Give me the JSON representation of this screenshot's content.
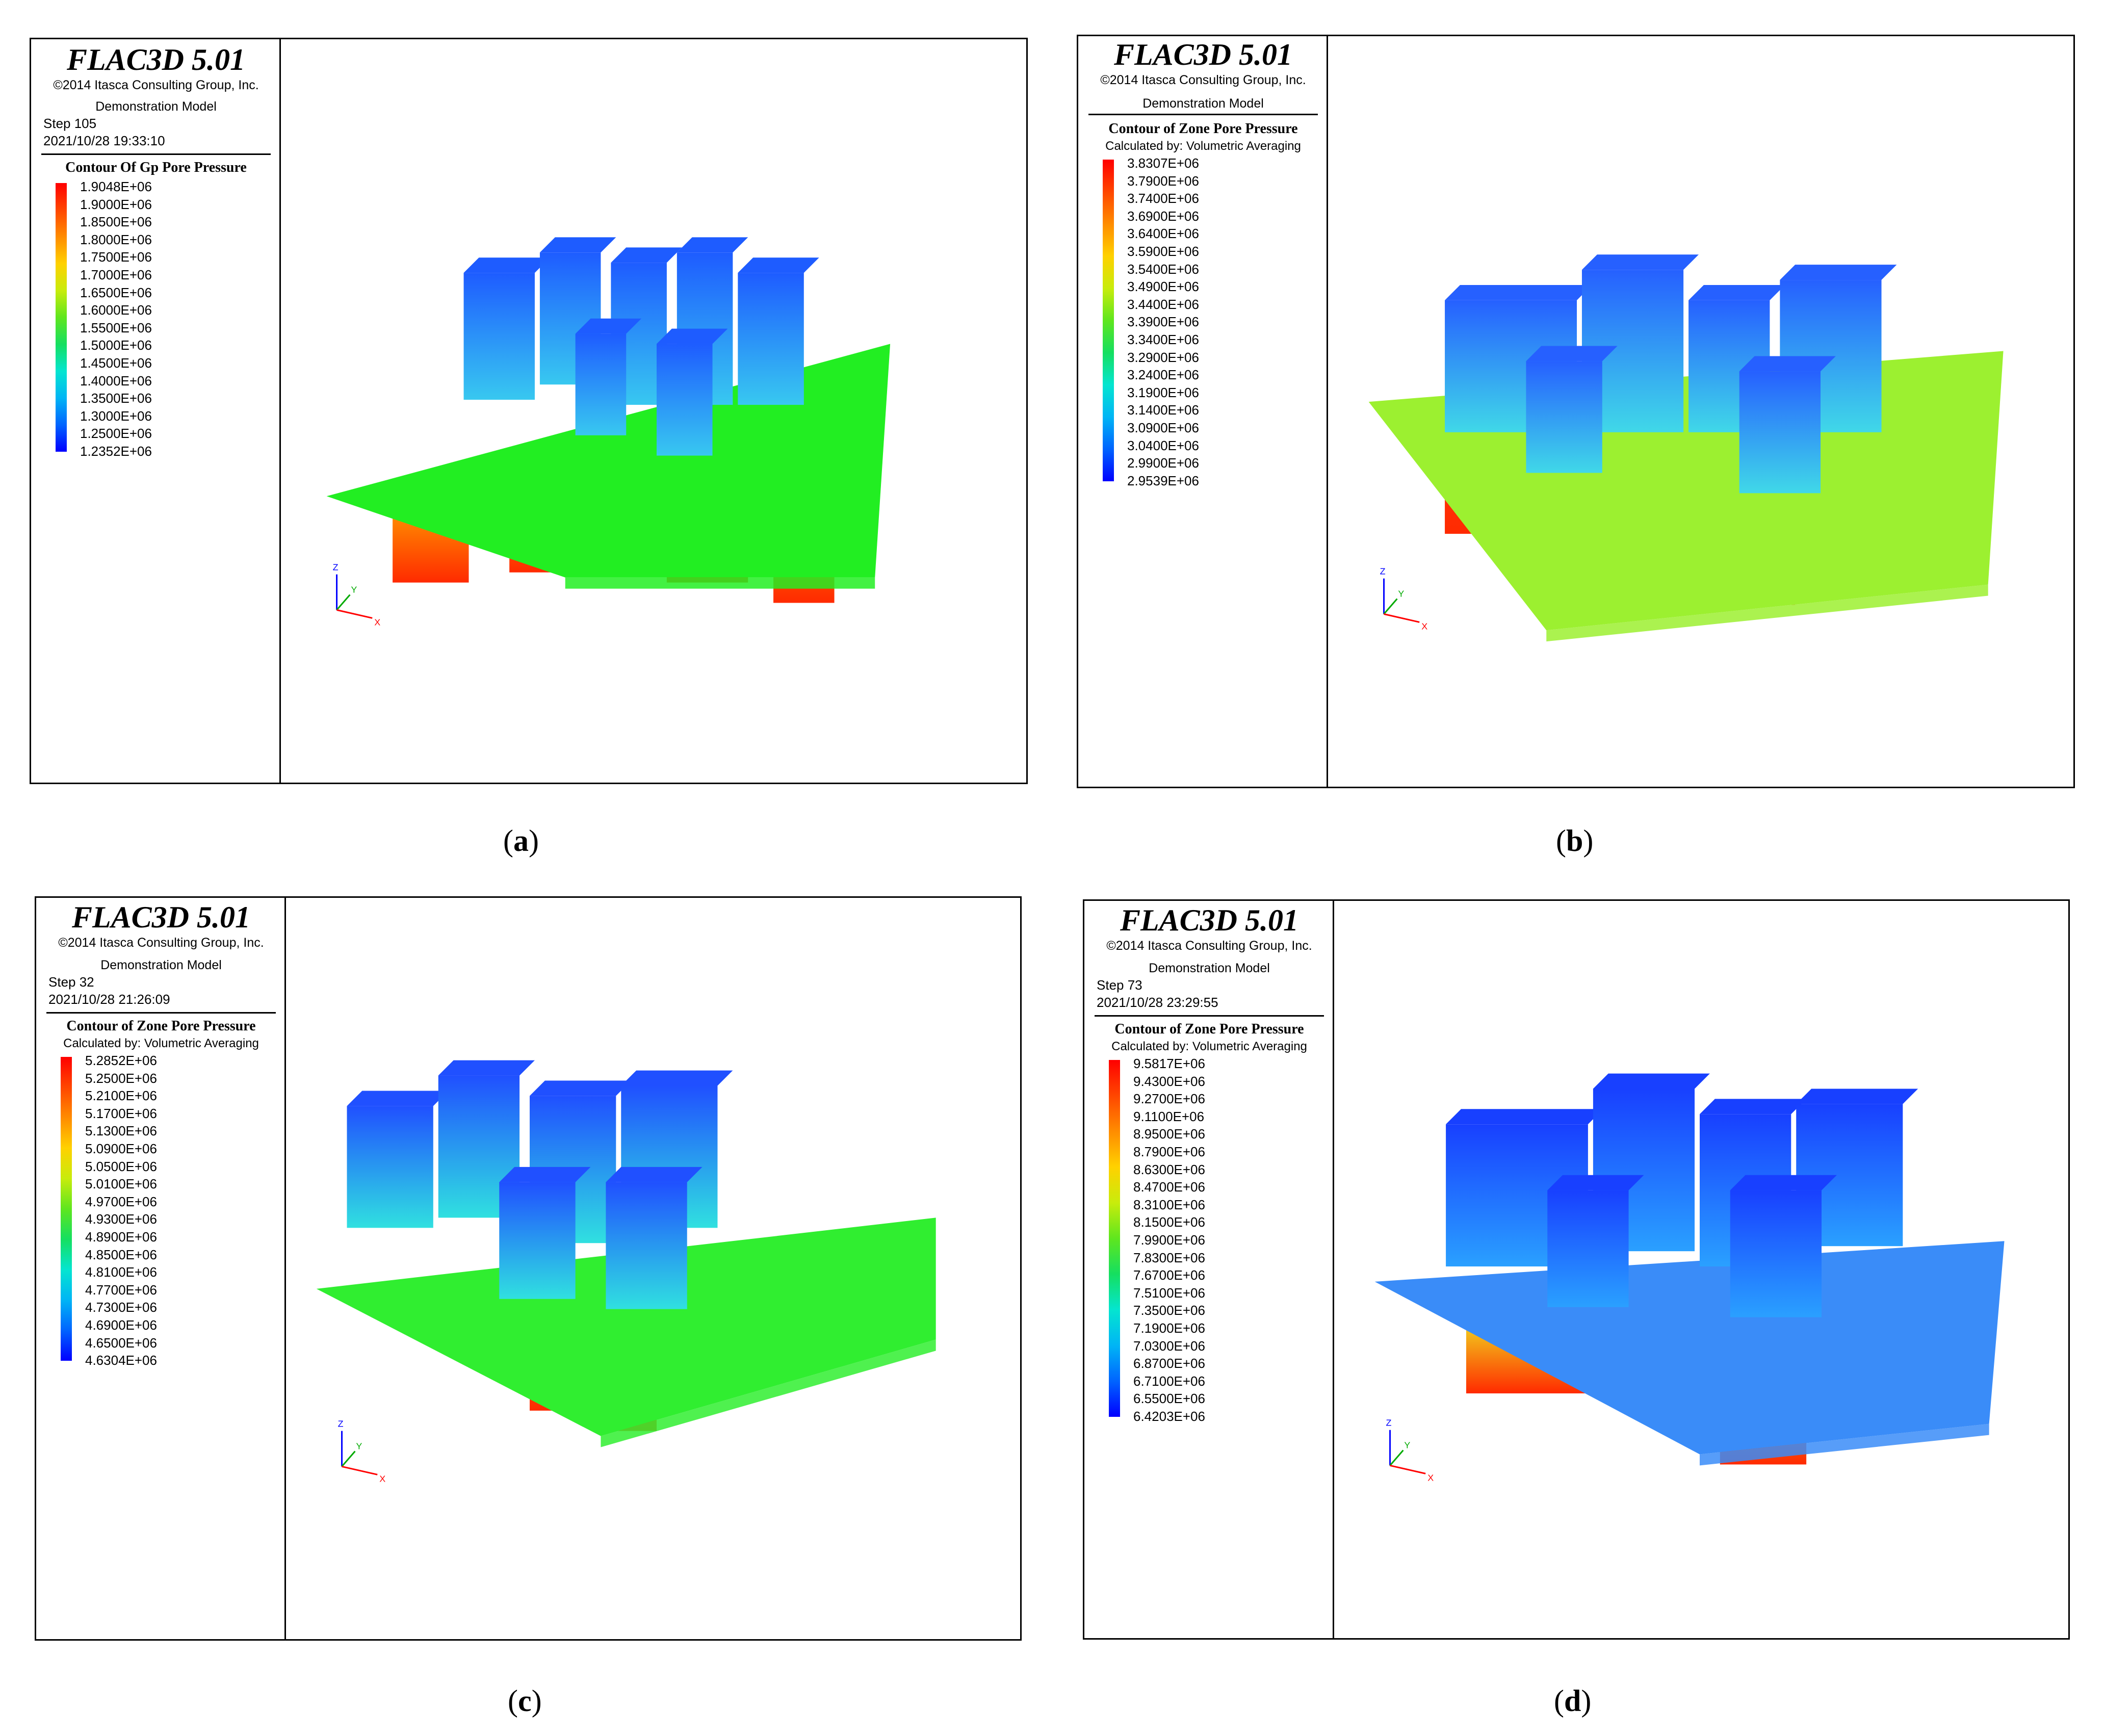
{
  "panels": [
    {
      "id": "a",
      "caption": "a",
      "title": "FLAC3D 5.01",
      "copyright": "©2014 Itasca Consulting Group, Inc.",
      "model": "Demonstration Model",
      "step": "Step 105",
      "timestamp": "2021/10/28 19:33:10",
      "contour_title": "Contour Of Gp Pore Pressure",
      "calc": "",
      "legend": [
        "1.9048E+06",
        "1.9000E+06",
        "1.8500E+06",
        "1.8000E+06",
        "1.7500E+06",
        "1.7000E+06",
        "1.6500E+06",
        "1.6000E+06",
        "1.5500E+06",
        "1.5000E+06",
        "1.4500E+06",
        "1.4000E+06",
        "1.3500E+06",
        "1.3000E+06",
        "1.2500E+06",
        "1.2352E+06"
      ],
      "axes": {
        "z": "Z",
        "y": "Y",
        "x": "X"
      },
      "colors": {
        "plate": "#22ee22",
        "top": "#1e5cff",
        "side": "#38c8f0",
        "below": "#ff8800"
      }
    },
    {
      "id": "b",
      "caption": "b",
      "title": "FLAC3D 5.01",
      "copyright": "©2014 Itasca Consulting Group, Inc.",
      "model": "Demonstration Model",
      "step": "",
      "timestamp": "",
      "contour_title": "Contour of Zone Pore Pressure",
      "calc": "Calculated by: Volumetric Averaging",
      "legend": [
        "3.8307E+06",
        "3.7900E+06",
        "3.7400E+06",
        "3.6900E+06",
        "3.6400E+06",
        "3.5900E+06",
        "3.5400E+06",
        "3.4900E+06",
        "3.4400E+06",
        "3.3900E+06",
        "3.3400E+06",
        "3.2900E+06",
        "3.2400E+06",
        "3.1900E+06",
        "3.1400E+06",
        "3.0900E+06",
        "3.0400E+06",
        "2.9900E+06",
        "2.9539E+06"
      ],
      "axes": {
        "z": "Z",
        "y": "Y",
        "x": "X"
      },
      "colors": {
        "plate": "#9cf030",
        "top": "#2660ff",
        "side": "#40d8e8",
        "below": "#ff3a10"
      }
    },
    {
      "id": "c",
      "caption": "c",
      "title": "FLAC3D 5.01",
      "copyright": "©2014 Itasca Consulting Group, Inc.",
      "model": "Demonstration Model",
      "step": "Step 32",
      "timestamp": "2021/10/28 21:26:09",
      "contour_title": "Contour of Zone Pore Pressure",
      "calc": "Calculated by: Volumetric Averaging",
      "legend": [
        "5.2852E+06",
        "5.2500E+06",
        "5.2100E+06",
        "5.1700E+06",
        "5.1300E+06",
        "5.0900E+06",
        "5.0500E+06",
        "5.0100E+06",
        "4.9700E+06",
        "4.9300E+06",
        "4.8900E+06",
        "4.8500E+06",
        "4.8100E+06",
        "4.7700E+06",
        "4.7300E+06",
        "4.6900E+06",
        "4.6500E+06",
        "4.6304E+06"
      ],
      "axes": {
        "z": "Z",
        "y": "Y",
        "x": "X"
      },
      "colors": {
        "plate": "#30ee30",
        "top": "#2050ff",
        "side": "#30e0e0",
        "below": "#ff6a10"
      }
    },
    {
      "id": "d",
      "caption": "d",
      "title": "FLAC3D 5.01",
      "copyright": "©2014 Itasca Consulting Group, Inc.",
      "model": "Demonstration Model",
      "step": "Step 73",
      "timestamp": "2021/10/28 23:29:55",
      "contour_title": "Contour of Zone Pore Pressure",
      "calc": "Calculated by: Volumetric Averaging",
      "legend": [
        "9.5817E+06",
        "9.4300E+06",
        "9.2700E+06",
        "9.1100E+06",
        "8.9500E+06",
        "8.7900E+06",
        "8.6300E+06",
        "8.4700E+06",
        "8.3100E+06",
        "8.1500E+06",
        "7.9900E+06",
        "7.8300E+06",
        "7.6700E+06",
        "7.5100E+06",
        "7.3500E+06",
        "7.1900E+06",
        "7.0300E+06",
        "6.8700E+06",
        "6.7100E+06",
        "6.5500E+06",
        "6.4203E+06"
      ],
      "axes": {
        "z": "Z",
        "y": "Y",
        "x": "X"
      },
      "colors": {
        "plate": "#3a8cf8",
        "top": "#1840ff",
        "side": "#2aa0ff",
        "below": "#f0e020"
      }
    }
  ]
}
